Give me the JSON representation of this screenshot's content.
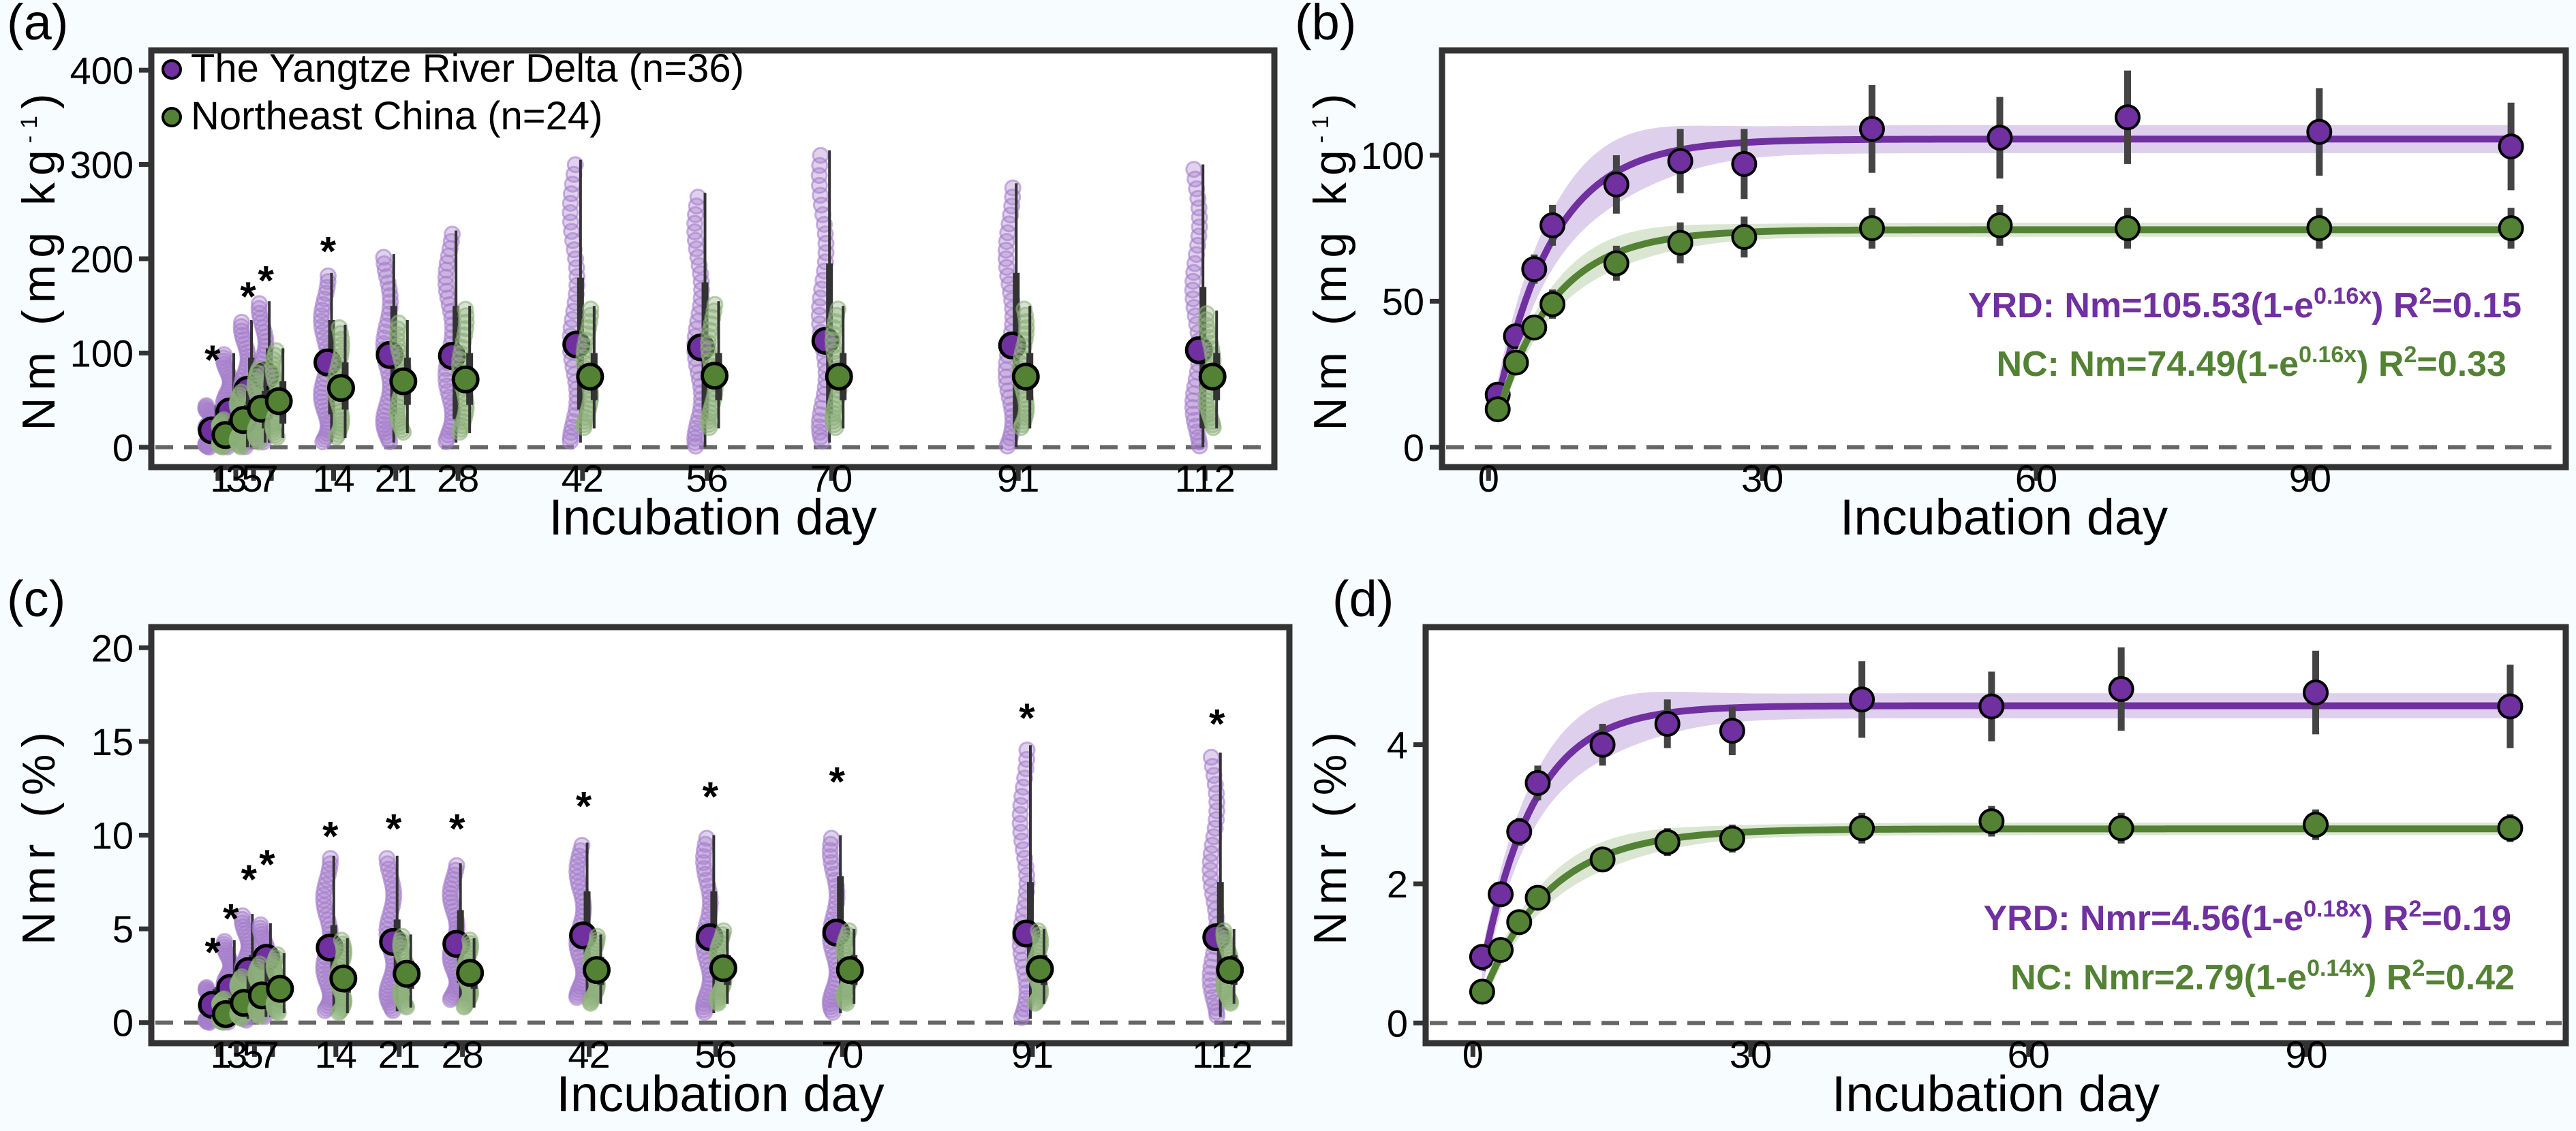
{
  "colors": {
    "yrd": "#7030a0",
    "nc": "#548235",
    "yrd_light": "#a57fcc",
    "nc_light": "#8db07a",
    "yrd_ribbon": "#d8c8ea",
    "nc_ribbon": "#d3e2ca",
    "frame": "#333333",
    "errorbar": "#444444",
    "zero_line": "#666666"
  },
  "legend": {
    "yrd": "The Yangtze River Delta (n=36)",
    "nc": "Northeast China (n=24)"
  },
  "chart_data": [
    {
      "panel": "(a)",
      "type": "scatter",
      "xlabel": "Incubation day",
      "ylabel": {
        "main": "Nm (mg kg",
        "sup": "-1",
        "end": ")"
      },
      "xlim": [
        -6.5,
        119.8
      ],
      "ylim": [
        -21,
        421
      ],
      "xticks": [
        1,
        3,
        5,
        7,
        14,
        21,
        28,
        42,
        56,
        70,
        91,
        112
      ],
      "xtick_labels": [
        "1",
        "3",
        "5",
        "7",
        "14",
        "21",
        "28",
        "42",
        "56",
        "70",
        "91",
        "112"
      ],
      "yticks": [
        0,
        100,
        200,
        300,
        400
      ],
      "ytick_labels": [
        "0",
        "100",
        "200",
        "300",
        "400"
      ],
      "zero_line": true,
      "legend_position": "top-left",
      "days": [
        1,
        3,
        5,
        7,
        14,
        21,
        28,
        42,
        56,
        70,
        91,
        112
      ],
      "series": [
        {
          "name": "The Yangtze River Delta (n=36)",
          "key": "yrd",
          "n": 36,
          "mean": [
            18,
            38,
            61,
            76,
            90,
            98,
            97,
            109,
            106,
            113,
            108,
            103
          ],
          "whisker_low": [
            0,
            0,
            0,
            5,
            5,
            5,
            5,
            5,
            0,
            5,
            0,
            0
          ],
          "whisker_high": [
            45,
            100,
            135,
            155,
            185,
            205,
            230,
            305,
            270,
            315,
            280,
            300
          ],
          "box_low": [
            5,
            15,
            25,
            30,
            35,
            35,
            30,
            40,
            30,
            35,
            20,
            20
          ],
          "box_high": [
            30,
            55,
            95,
            105,
            135,
            150,
            150,
            180,
            175,
            195,
            185,
            170
          ]
        },
        {
          "name": "Northeast China (n=24)",
          "key": "nc",
          "n": 24,
          "mean": [
            13,
            29,
            41,
            49,
            63,
            70,
            72,
            75,
            76,
            75,
            75,
            75
          ],
          "whisker_low": [
            0,
            0,
            5,
            10,
            10,
            15,
            15,
            20,
            20,
            20,
            20,
            20
          ],
          "whisker_high": [
            30,
            60,
            85,
            105,
            130,
            135,
            150,
            150,
            155,
            150,
            150,
            145
          ],
          "box_low": [
            5,
            15,
            20,
            25,
            40,
            45,
            45,
            50,
            50,
            50,
            50,
            50
          ],
          "box_high": [
            22,
            45,
            60,
            70,
            90,
            95,
            100,
            100,
            100,
            100,
            100,
            100
          ]
        }
      ],
      "significance": {
        "symbol": "*",
        "days": [
          1,
          5,
          7,
          14
        ],
        "y": [
          94,
          161,
          178,
          209
        ]
      }
    },
    {
      "panel": "(b)",
      "type": "line",
      "xlabel": "Incubation day",
      "ylabel": {
        "main": "Nm (mg kg",
        "sup": "-1",
        "end": ")"
      },
      "xlim": [
        -5.1,
        118
      ],
      "ylim": [
        -6.8,
        135.9
      ],
      "xticks": [
        0,
        30,
        60,
        90
      ],
      "xtick_labels": [
        "0",
        "30",
        "60",
        "90"
      ],
      "yticks": [
        0,
        50,
        100
      ],
      "ytick_labels": [
        "0",
        "50",
        "100"
      ],
      "zero_line": true,
      "days": [
        1,
        3,
        5,
        7,
        14,
        21,
        28,
        42,
        56,
        70,
        91,
        112
      ],
      "series": [
        {
          "key": "yrd",
          "mean": [
            18,
            38,
            61,
            76,
            90,
            98,
            97,
            109,
            106,
            113,
            108,
            103
          ],
          "error": [
            2,
            4,
            5,
            7,
            10,
            11,
            12,
            15,
            14,
            16,
            15,
            15
          ],
          "fit": {
            "a": 105.53,
            "k": 0.16,
            "ribbon": 8
          },
          "equation": {
            "lhs": "YRD: Nm=105.53(1-e",
            "exponent": "0.16x",
            "close": ") R",
            "r2_sup": "2",
            "r2": "=0.15"
          }
        },
        {
          "key": "nc",
          "mean": [
            13,
            29,
            41,
            49,
            63,
            70,
            72,
            75,
            76,
            75,
            75,
            75
          ],
          "error": [
            2,
            3,
            4,
            5,
            6,
            7,
            7,
            7,
            7,
            7,
            7,
            7
          ],
          "fit": {
            "a": 74.49,
            "k": 0.16,
            "ribbon": 4
          },
          "equation": {
            "lhs": "NC: Nm=74.49(1-e",
            "exponent": "0.16x",
            "close": ") R",
            "r2_sup": "2",
            "r2": "=0.33"
          }
        }
      ]
    },
    {
      "panel": "(c)",
      "type": "scatter",
      "xlabel": "Incubation day",
      "ylabel": {
        "main": "Nmr (%)",
        "sup": "",
        "end": ""
      },
      "xlim": [
        -6.4,
        119.4
      ],
      "ylim": [
        -1.1,
        21.1
      ],
      "xticks": [
        1,
        3,
        5,
        7,
        14,
        21,
        28,
        42,
        56,
        70,
        91,
        112
      ],
      "xtick_labels": [
        "1",
        "3",
        "5",
        "7",
        "14",
        "21",
        "28",
        "42",
        "56",
        "70",
        "91",
        "112"
      ],
      "yticks": [
        0,
        5,
        10,
        15,
        20
      ],
      "ytick_labels": [
        "0",
        "5",
        "10",
        "15",
        "20"
      ],
      "zero_line": true,
      "days": [
        1,
        3,
        5,
        7,
        14,
        21,
        28,
        42,
        56,
        70,
        91,
        112
      ],
      "series": [
        {
          "key": "yrd",
          "n": 36,
          "mean": [
            0.95,
            1.85,
            2.75,
            3.45,
            4.0,
            4.3,
            4.2,
            4.65,
            4.55,
            4.8,
            4.75,
            4.55
          ],
          "whisker_low": [
            0,
            0,
            0.1,
            0.3,
            0.6,
            0.6,
            1.2,
            1.3,
            0.5,
            0.5,
            0.2,
            0.3
          ],
          "whisker_high": [
            1.9,
            4.4,
            5.8,
            5.3,
            8.9,
            8.9,
            8.5,
            9.6,
            10.0,
            10.0,
            14.8,
            14.4
          ],
          "box_low": [
            0.3,
            0.9,
            1.4,
            2.2,
            2.1,
            2.4,
            2.1,
            3.0,
            2.8,
            3.0,
            2.5,
            2.3
          ],
          "box_high": [
            1.8,
            2.5,
            3.6,
            4.0,
            5.2,
            5.5,
            6.0,
            7.0,
            7.0,
            7.8,
            7.5,
            7.5
          ]
        },
        {
          "key": "nc",
          "n": 24,
          "mean": [
            0.45,
            1.05,
            1.45,
            1.8,
            2.35,
            2.6,
            2.65,
            2.8,
            2.9,
            2.8,
            2.85,
            2.8
          ],
          "whisker_low": [
            0,
            0.2,
            0.3,
            0.5,
            0.5,
            0.8,
            0.8,
            1.0,
            1.0,
            1.0,
            1.0,
            1.0
          ],
          "whisker_high": [
            1.3,
            2.5,
            3.2,
            3.7,
            4.5,
            4.7,
            4.5,
            4.7,
            5.0,
            5.0,
            5.0,
            5.0
          ],
          "box_low": [
            0.2,
            0.6,
            0.9,
            1.2,
            1.6,
            1.8,
            1.8,
            2.0,
            2.0,
            2.0,
            2.0,
            2.0
          ],
          "box_high": [
            0.8,
            1.5,
            2.0,
            2.4,
            3.0,
            3.3,
            3.3,
            3.5,
            3.6,
            3.6,
            3.6,
            3.6
          ]
        }
      ],
      "significance": {
        "symbol": "*",
        "days": [
          1,
          3,
          5,
          7,
          14,
          21,
          28,
          42,
          56,
          70,
          91,
          112
        ],
        "y": [
          3.8,
          5.6,
          7.7,
          8.5,
          10.0,
          10.4,
          10.4,
          11.6,
          12.1,
          12.9,
          16.3,
          16.0
        ]
      }
    },
    {
      "panel": "(d)",
      "type": "line",
      "xlabel": "Incubation day",
      "ylabel": {
        "main": "Nmr (%)",
        "sup": "",
        "end": ""
      },
      "xlim": [
        -5.1,
        118
      ],
      "ylim": [
        -0.29,
        5.69
      ],
      "xticks": [
        0,
        30,
        60,
        90
      ],
      "xtick_labels": [
        "0",
        "30",
        "60",
        "90"
      ],
      "yticks": [
        0,
        2,
        4
      ],
      "ytick_labels": [
        "0",
        "2",
        "4"
      ],
      "zero_line": true,
      "days": [
        1,
        3,
        5,
        7,
        14,
        21,
        28,
        42,
        56,
        70,
        91,
        112
      ],
      "series": [
        {
          "key": "yrd",
          "mean": [
            0.95,
            1.85,
            2.75,
            3.45,
            4.0,
            4.3,
            4.2,
            4.65,
            4.55,
            4.8,
            4.75,
            4.55
          ],
          "error": [
            0.1,
            0.15,
            0.2,
            0.25,
            0.3,
            0.35,
            0.35,
            0.55,
            0.5,
            0.6,
            0.6,
            0.6
          ],
          "fit": {
            "a": 4.56,
            "k": 0.18,
            "ribbon": 0.3
          },
          "equation": {
            "lhs": "YRD: Nmr=4.56(1-e",
            "exponent": "0.18x",
            "close": ") R",
            "r2_sup": "2",
            "r2": "=0.19"
          }
        },
        {
          "key": "nc",
          "mean": [
            0.45,
            1.05,
            1.45,
            1.8,
            2.35,
            2.6,
            2.65,
            2.8,
            2.9,
            2.8,
            2.85,
            2.8
          ],
          "error": [
            0.05,
            0.1,
            0.1,
            0.12,
            0.15,
            0.2,
            0.2,
            0.22,
            0.22,
            0.22,
            0.22,
            0.2
          ],
          "fit": {
            "a": 2.79,
            "k": 0.14,
            "ribbon": 0.15
          },
          "equation": {
            "lhs": "NC:  Nmr=2.79(1-e",
            "exponent": "0.14x",
            "close": ") R",
            "r2_sup": "2",
            "r2": "=0.42"
          }
        }
      ]
    }
  ]
}
